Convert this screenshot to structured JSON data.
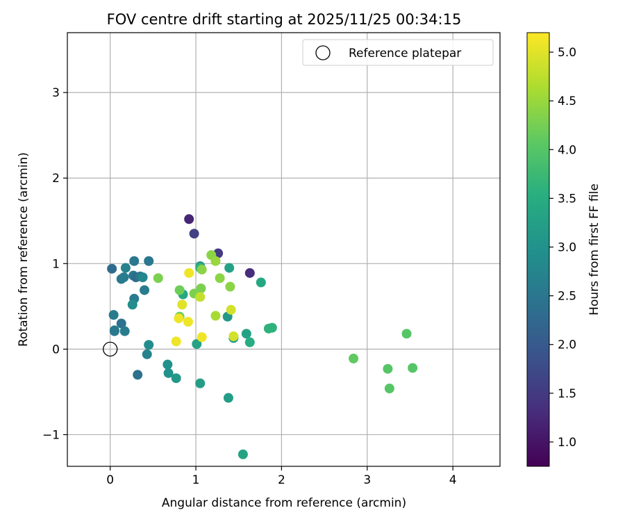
{
  "chart_data": {
    "type": "scatter",
    "title": "FOV centre drift starting at 2025/11/25 00:34:15",
    "xlabel": "Angular distance from reference (arcmin)",
    "ylabel": "Rotation from reference (arcmin)",
    "xlim": [
      -0.5,
      4.55
    ],
    "ylim": [
      -1.37,
      3.7
    ],
    "x_ticks": [
      0,
      1,
      2,
      3,
      4
    ],
    "x_tick_labels": [
      "0",
      "1",
      "2",
      "3",
      "4"
    ],
    "y_ticks": [
      -1,
      0,
      1,
      2,
      3
    ],
    "y_tick_labels": [
      "−1",
      "0",
      "1",
      "2",
      "3"
    ],
    "grid": true,
    "legend": {
      "placement": "top-right",
      "entries": [
        {
          "label": "Reference platepar",
          "marker": "open-circle"
        }
      ]
    },
    "reference_point": {
      "x": 0,
      "y": 0
    },
    "colorbar": {
      "label": "Hours from first FF file",
      "range": [
        0.75,
        5.2
      ],
      "ticks": [
        1.0,
        1.5,
        2.0,
        2.5,
        3.0,
        3.5,
        4.0,
        4.5,
        5.0
      ],
      "tick_labels": [
        "1.0",
        "1.5",
        "2.0",
        "2.5",
        "3.0",
        "3.5",
        "4.0",
        "4.5",
        "5.0"
      ],
      "colormap": "viridis"
    },
    "points": [
      {
        "x": 0.92,
        "y": 1.52,
        "c": 1.2
      },
      {
        "x": 0.98,
        "y": 1.35,
        "c": 1.6
      },
      {
        "x": 1.26,
        "y": 1.12,
        "c": 1.5
      },
      {
        "x": 1.63,
        "y": 0.89,
        "c": 1.3
      },
      {
        "x": 0.02,
        "y": 0.94,
        "c": 2.3
      },
      {
        "x": 0.28,
        "y": 1.03,
        "c": 2.5
      },
      {
        "x": 0.45,
        "y": 1.03,
        "c": 2.5
      },
      {
        "x": 0.18,
        "y": 0.95,
        "c": 2.7
      },
      {
        "x": 0.13,
        "y": 0.82,
        "c": 2.5
      },
      {
        "x": 0.16,
        "y": 0.84,
        "c": 2.6
      },
      {
        "x": 0.27,
        "y": 0.86,
        "c": 2.5
      },
      {
        "x": 0.3,
        "y": 0.84,
        "c": 2.3
      },
      {
        "x": 0.35,
        "y": 0.85,
        "c": 2.5
      },
      {
        "x": 0.38,
        "y": 0.84,
        "c": 2.8
      },
      {
        "x": 0.4,
        "y": 0.69,
        "c": 2.6
      },
      {
        "x": 0.28,
        "y": 0.59,
        "c": 2.6
      },
      {
        "x": 0.26,
        "y": 0.52,
        "c": 2.9
      },
      {
        "x": 0.04,
        "y": 0.4,
        "c": 2.6
      },
      {
        "x": 0.13,
        "y": 0.3,
        "c": 2.4
      },
      {
        "x": 0.05,
        "y": 0.22,
        "c": 2.7
      },
      {
        "x": 0.05,
        "y": 0.21,
        "c": 2.5
      },
      {
        "x": 0.17,
        "y": 0.21,
        "c": 2.6
      },
      {
        "x": 0.45,
        "y": 0.05,
        "c": 2.9
      },
      {
        "x": 0.43,
        "y": -0.06,
        "c": 2.7
      },
      {
        "x": 0.32,
        "y": -0.3,
        "c": 2.4
      },
      {
        "x": 0.67,
        "y": -0.18,
        "c": 3.0
      },
      {
        "x": 0.68,
        "y": -0.28,
        "c": 3.0
      },
      {
        "x": 0.77,
        "y": -0.34,
        "c": 3.1
      },
      {
        "x": 1.05,
        "y": -0.4,
        "c": 3.2
      },
      {
        "x": 1.38,
        "y": -0.57,
        "c": 3.2
      },
      {
        "x": 1.55,
        "y": -1.23,
        "c": 3.3
      },
      {
        "x": 1.01,
        "y": 0.06,
        "c": 3.3
      },
      {
        "x": 1.44,
        "y": 0.13,
        "c": 3.2
      },
      {
        "x": 1.59,
        "y": 0.18,
        "c": 3.3
      },
      {
        "x": 1.63,
        "y": 0.08,
        "c": 3.5
      },
      {
        "x": 1.85,
        "y": 0.24,
        "c": 3.6
      },
      {
        "x": 1.89,
        "y": 0.25,
        "c": 3.6
      },
      {
        "x": 1.37,
        "y": 0.38,
        "c": 3.1
      },
      {
        "x": 1.76,
        "y": 0.78,
        "c": 3.4
      },
      {
        "x": 1.39,
        "y": 0.95,
        "c": 3.3
      },
      {
        "x": 0.85,
        "y": 0.64,
        "c": 3.4
      },
      {
        "x": 1.05,
        "y": 0.97,
        "c": 3.1
      },
      {
        "x": 1.05,
        "y": 0.95,
        "c": 3.6
      },
      {
        "x": 0.81,
        "y": 0.38,
        "c": 4.2
      },
      {
        "x": 0.81,
        "y": 0.69,
        "c": 4.2
      },
      {
        "x": 0.56,
        "y": 0.83,
        "c": 4.3
      },
      {
        "x": 0.98,
        "y": 0.65,
        "c": 4.3
      },
      {
        "x": 1.06,
        "y": 0.71,
        "c": 4.3
      },
      {
        "x": 1.07,
        "y": 0.93,
        "c": 4.4
      },
      {
        "x": 1.18,
        "y": 1.1,
        "c": 4.4
      },
      {
        "x": 1.23,
        "y": 1.03,
        "c": 4.5
      },
      {
        "x": 1.28,
        "y": 0.83,
        "c": 4.4
      },
      {
        "x": 1.4,
        "y": 0.73,
        "c": 4.4
      },
      {
        "x": 1.23,
        "y": 0.39,
        "c": 4.6
      },
      {
        "x": 1.05,
        "y": 0.61,
        "c": 4.8
      },
      {
        "x": 1.41,
        "y": 0.46,
        "c": 4.9
      },
      {
        "x": 1.44,
        "y": 0.15,
        "c": 4.9
      },
      {
        "x": 0.92,
        "y": 0.89,
        "c": 5.1
      },
      {
        "x": 0.84,
        "y": 0.52,
        "c": 5.0
      },
      {
        "x": 0.8,
        "y": 0.36,
        "c": 5.1
      },
      {
        "x": 0.91,
        "y": 0.32,
        "c": 5.1
      },
      {
        "x": 1.07,
        "y": 0.14,
        "c": 5.1
      },
      {
        "x": 0.77,
        "y": 0.09,
        "c": 5.1
      },
      {
        "x": 2.84,
        "y": -0.11,
        "c": 4.1
      },
      {
        "x": 3.24,
        "y": -0.23,
        "c": 4.0
      },
      {
        "x": 3.26,
        "y": -0.46,
        "c": 4.0
      },
      {
        "x": 3.46,
        "y": 0.18,
        "c": 4.0
      },
      {
        "x": 3.53,
        "y": -0.22,
        "c": 4.0
      }
    ]
  }
}
